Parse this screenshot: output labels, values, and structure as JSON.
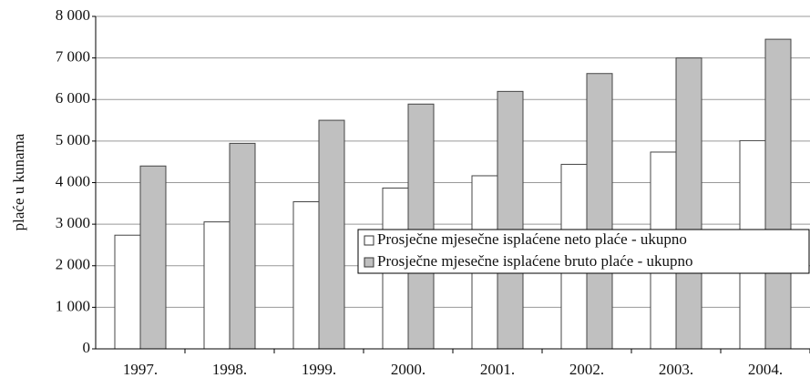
{
  "chart_data": {
    "type": "bar",
    "y_label": "plaće u kunama",
    "categories": [
      "1997.",
      "1998.",
      "1999.",
      "2000.",
      "2001.",
      "2002.",
      "2003.",
      "2004."
    ],
    "series": [
      {
        "name": "Prosječne mjesečne isplaćene neto plaće - ukupno",
        "color": "#ffffff",
        "values": [
          2735,
          3055,
          3540,
          3870,
          4165,
          4440,
          4735,
          5010
        ]
      },
      {
        "name": "Prosječne mjesečne isplaćene bruto plaće - ukupno",
        "color": "#c0c0c0",
        "values": [
          4400,
          4945,
          5500,
          5890,
          6195,
          6625,
          7000,
          7450
        ]
      }
    ],
    "ylim": [
      0,
      8000
    ],
    "yticks": [
      0,
      {
        "value": 1000,
        "label": "1 000"
      },
      {
        "value": 2000,
        "label": "2 000"
      },
      {
        "value": 3000,
        "label": "3 000"
      },
      {
        "value": 4000,
        "label": "4 000"
      },
      {
        "value": 5000,
        "label": "5 000"
      },
      {
        "value": 6000,
        "label": "6 000"
      },
      {
        "value": 7000,
        "label": "7 000"
      },
      {
        "value": 8000,
        "label": "8 000"
      }
    ],
    "grid": true,
    "legend": "right"
  }
}
